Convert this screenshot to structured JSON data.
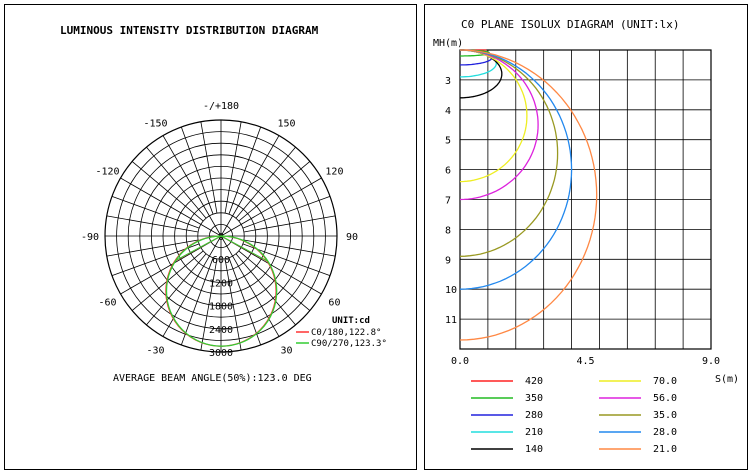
{
  "left_title": "LUMINOUS INTENSITY DISTRIBUTION DIAGRAM",
  "right_title": "C0 PLANE ISOLUX DIAGRAM (UNIT:lx)",
  "chart_data": [
    {
      "type": "polar",
      "title": "LUMINOUS INTENSITY DISTRIBUTION DIAGRAM",
      "unit_label": "UNIT:cd",
      "angle_labels": [
        "-/+180",
        "150",
        "120",
        "90",
        "60",
        "30",
        "0",
        "-30",
        "-60",
        "-90",
        "-120",
        "-150"
      ],
      "radial_labels": [
        "0",
        "600",
        "1200",
        "1800",
        "2400",
        "3000"
      ],
      "radial_max": 3000,
      "grid": true,
      "legend_position": "bottom-right",
      "series": [
        {
          "name": "C0/180,122.8°",
          "color": "#ff3333",
          "beam_angle": 122.8,
          "peak": 2850
        },
        {
          "name": "C90/270,123.3°",
          "color": "#33cc33",
          "beam_angle": 123.3,
          "peak": 2850
        }
      ],
      "footer": "AVERAGE BEAM ANGLE(50%):123.0 DEG"
    },
    {
      "type": "line",
      "title": "C0 PLANE ISOLUX DIAGRAM (UNIT:lx)",
      "xlabel": "S(m)",
      "ylabel": "MH(m)",
      "xlim": [
        0,
        9
      ],
      "ylim": [
        2,
        12
      ],
      "x_ticks": [
        "0.0",
        "4.5",
        "9.0"
      ],
      "y_ticks": [
        "3",
        "4",
        "5",
        "6",
        "7",
        "8",
        "9",
        "10",
        "11"
      ],
      "grid": true,
      "legend_position": "bottom",
      "series": [
        {
          "name": "420",
          "color": "#ff2222",
          "half_width": 0.95,
          "max_height": 2.0
        },
        {
          "name": "350",
          "color": "#22bb22",
          "half_width": 1.05,
          "max_height": 2.2
        },
        {
          "name": "280",
          "color": "#2222dd",
          "half_width": 1.15,
          "max_height": 2.5
        },
        {
          "name": "210",
          "color": "#22dddd",
          "half_width": 1.3,
          "max_height": 2.9
        },
        {
          "name": "140",
          "color": "#000000",
          "half_width": 1.5,
          "max_height": 3.6
        },
        {
          "name": "70.0",
          "color": "#eeee22",
          "half_width": 2.4,
          "max_height": 6.4
        },
        {
          "name": "56.0",
          "color": "#dd22dd",
          "half_width": 2.8,
          "max_height": 7.0
        },
        {
          "name": "35.0",
          "color": "#999922",
          "half_width": 3.5,
          "max_height": 8.9
        },
        {
          "name": "28.0",
          "color": "#2288ee",
          "half_width": 4.0,
          "max_height": 10.0
        },
        {
          "name": "21.0",
          "color": "#ff8844",
          "half_width": 4.9,
          "max_height": 11.7
        }
      ]
    }
  ]
}
